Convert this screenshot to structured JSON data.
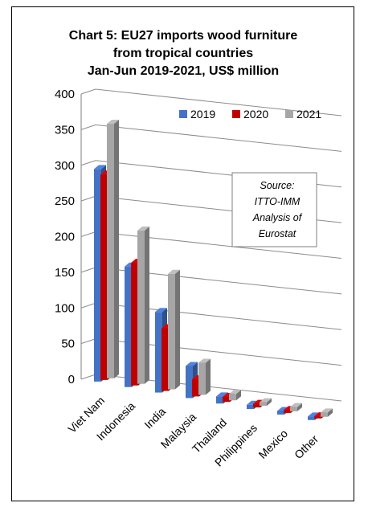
{
  "chart_data": {
    "type": "bar",
    "title_lines": [
      "Chart 5: EU27 imports wood furniture",
      "from tropical countries",
      "Jan-Jun 2019-2021, US$ million"
    ],
    "categories": [
      "Viet Nam",
      "Indonesia",
      "India",
      "Malaysia",
      "Thailand",
      "Philippines",
      "Mexico",
      "Other"
    ],
    "series": [
      {
        "name": "2019",
        "color": "#4472C4",
        "values": [
          298,
          169,
          113,
          45,
          10,
          6,
          5,
          5
        ]
      },
      {
        "name": "2020",
        "color": "#C00000",
        "values": [
          288,
          172,
          88,
          24,
          7,
          5,
          4,
          3
        ]
      },
      {
        "name": "2021",
        "color": "#A6A6A6",
        "values": [
          357,
          215,
          162,
          45,
          9,
          5,
          6,
          6
        ]
      }
    ],
    "ylim": [
      0,
      400
    ],
    "yticks": [
      0,
      50,
      100,
      150,
      200,
      250,
      300,
      350,
      400
    ],
    "grid": true,
    "legend_position": "top-right",
    "note_lines": [
      "Source:",
      "ITTO-IMM",
      "Analysis of",
      "Eurostat"
    ]
  }
}
